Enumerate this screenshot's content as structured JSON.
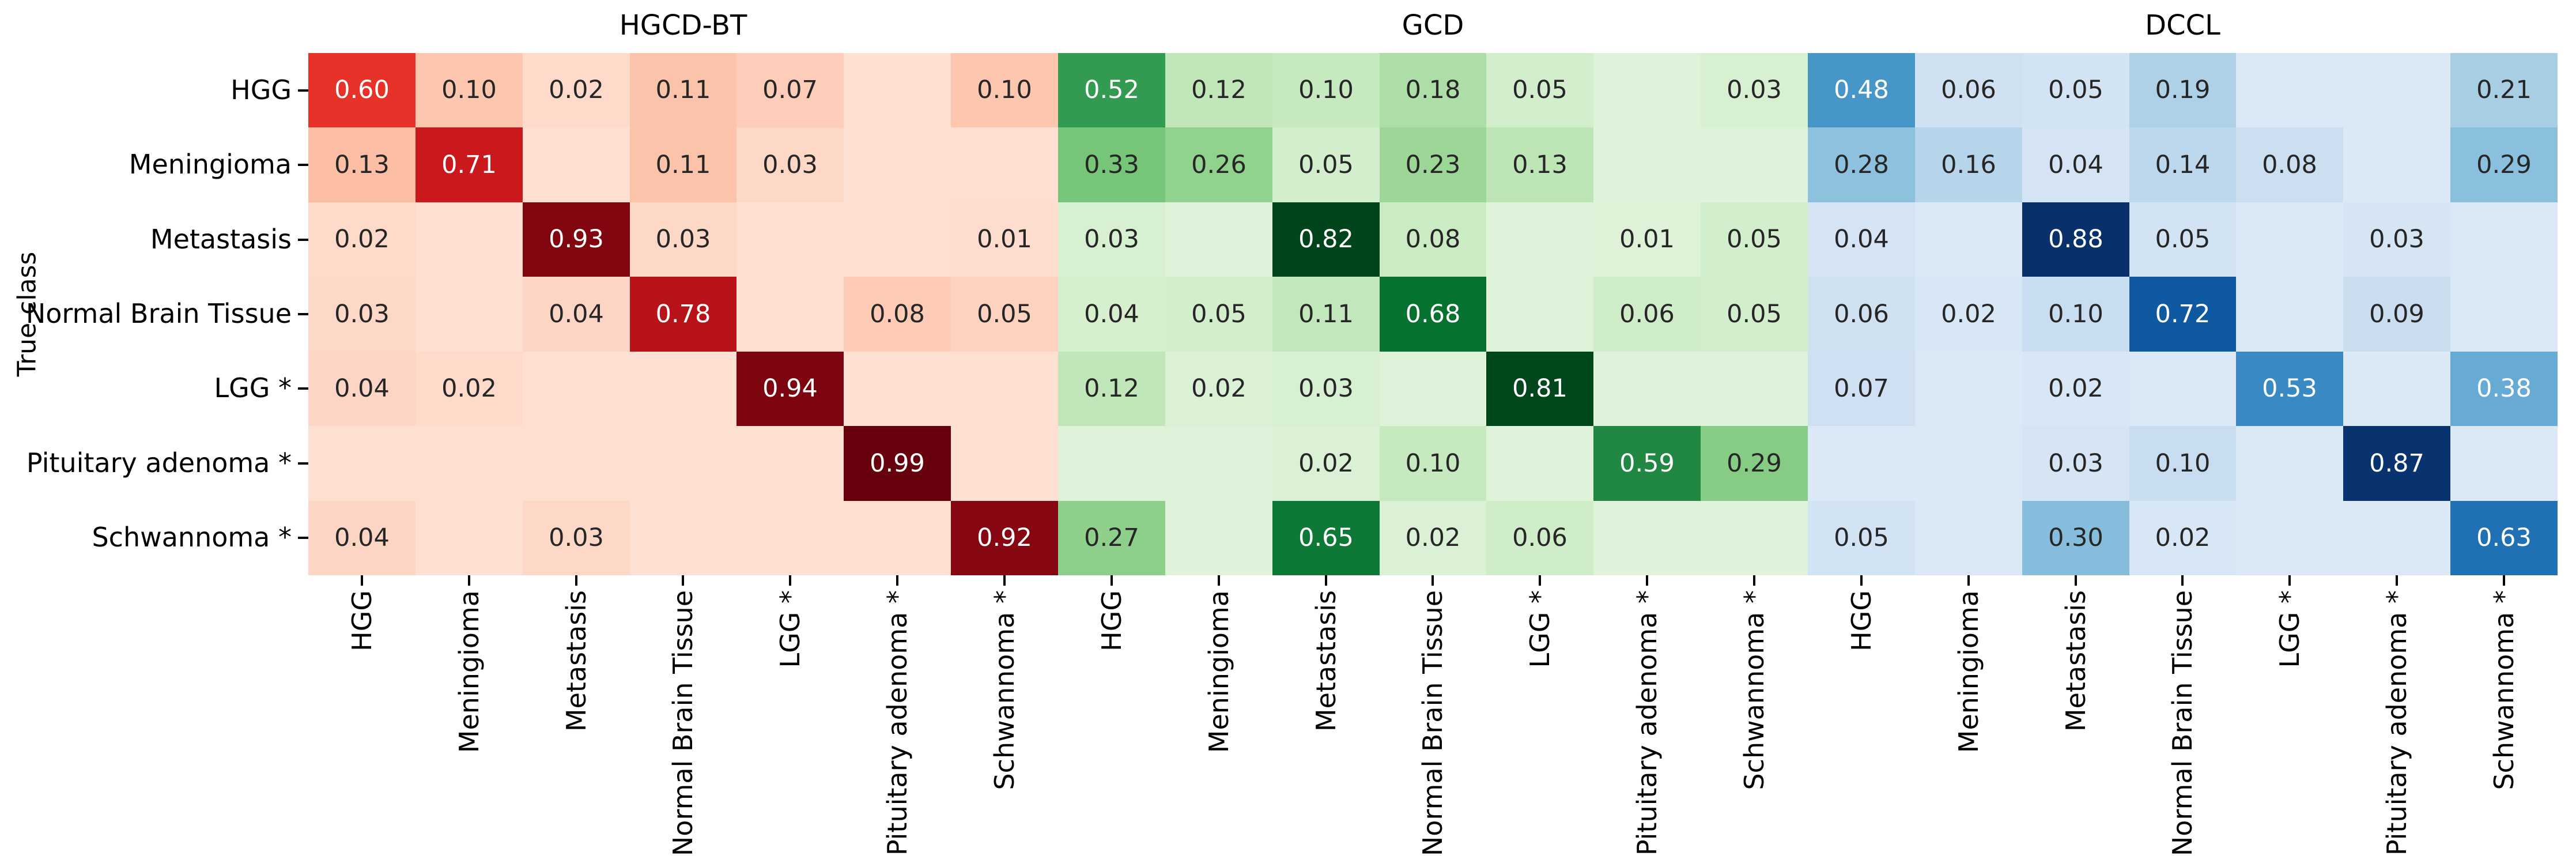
{
  "figure": {
    "ylabel": "True class",
    "background_color": "#ffffff",
    "text_color": "#000000",
    "annotation_dark_color": "#262626",
    "annotation_light_color": "#ffffff"
  },
  "chart_data": [
    {
      "type": "heatmap",
      "title": "HGCD-BT",
      "colormap": "Reds",
      "value_format": ".2f",
      "x_categories": [
        "HGG",
        "Meningioma",
        "Metastasis",
        "Normal Brain Tissue",
        "LGG *",
        "Pituitary adenoma *",
        "Schwannoma *"
      ],
      "y_categories": [
        "HGG",
        "Meningioma",
        "Metastasis",
        "Normal Brain Tissue",
        "LGG *",
        "Pituitary adenoma *",
        "Schwannoma *"
      ],
      "values": [
        [
          0.6,
          0.1,
          0.02,
          0.11,
          0.07,
          null,
          0.1
        ],
        [
          0.13,
          0.71,
          null,
          0.11,
          0.03,
          null,
          null
        ],
        [
          0.02,
          null,
          0.93,
          0.03,
          null,
          null,
          0.01
        ],
        [
          0.03,
          null,
          0.04,
          0.78,
          null,
          0.08,
          0.05
        ],
        [
          0.04,
          0.02,
          null,
          null,
          0.94,
          null,
          null
        ],
        [
          null,
          null,
          null,
          null,
          null,
          0.99,
          null
        ],
        [
          0.04,
          null,
          0.03,
          null,
          null,
          null,
          0.92
        ]
      ]
    },
    {
      "type": "heatmap",
      "title": "GCD",
      "colormap": "Greens",
      "value_format": ".2f",
      "x_categories": [
        "HGG",
        "Meningioma",
        "Metastasis",
        "Normal Brain Tissue",
        "LGG *",
        "Pituitary adenoma *",
        "Schwannoma *"
      ],
      "y_categories": [
        "HGG",
        "Meningioma",
        "Metastasis",
        "Normal Brain Tissue",
        "LGG *",
        "Pituitary adenoma *",
        "Schwannoma *"
      ],
      "values": [
        [
          0.52,
          0.12,
          0.1,
          0.18,
          0.05,
          null,
          0.03
        ],
        [
          0.33,
          0.26,
          0.05,
          0.23,
          0.13,
          null,
          null
        ],
        [
          0.03,
          null,
          0.82,
          0.08,
          null,
          0.01,
          0.05
        ],
        [
          0.04,
          0.05,
          0.11,
          0.68,
          null,
          0.06,
          0.05
        ],
        [
          0.12,
          0.02,
          0.03,
          null,
          0.81,
          null,
          null
        ],
        [
          null,
          null,
          0.02,
          0.1,
          null,
          0.59,
          0.29
        ],
        [
          0.27,
          null,
          0.65,
          0.02,
          0.06,
          null,
          null
        ]
      ]
    },
    {
      "type": "heatmap",
      "title": "DCCL",
      "colormap": "Blues",
      "value_format": ".2f",
      "x_categories": [
        "HGG",
        "Meningioma",
        "Metastasis",
        "Normal Brain Tissue",
        "LGG *",
        "Pituitary adenoma *",
        "Schwannoma *"
      ],
      "y_categories": [
        "HGG",
        "Meningioma",
        "Metastasis",
        "Normal Brain Tissue",
        "LGG *",
        "Pituitary adenoma *",
        "Schwannoma *"
      ],
      "values": [
        [
          0.48,
          0.06,
          0.05,
          0.19,
          null,
          null,
          0.21
        ],
        [
          0.28,
          0.16,
          0.04,
          0.14,
          0.08,
          null,
          0.29
        ],
        [
          0.04,
          null,
          0.88,
          0.05,
          null,
          0.03,
          null
        ],
        [
          0.06,
          0.02,
          0.1,
          0.72,
          null,
          0.09,
          null
        ],
        [
          0.07,
          null,
          0.02,
          null,
          0.53,
          null,
          0.38
        ],
        [
          null,
          null,
          0.03,
          0.1,
          null,
          0.87,
          null
        ],
        [
          0.05,
          null,
          0.3,
          0.02,
          null,
          null,
          0.63
        ]
      ]
    }
  ],
  "colormaps": {
    "Reds": [
      "#fff5f0",
      "#fee0d2",
      "#fcbba1",
      "#fc9272",
      "#fb6a4a",
      "#ef3b2c",
      "#cb181d",
      "#a50f15",
      "#67000d"
    ],
    "Greens": [
      "#f7fcf5",
      "#e5f5e0",
      "#c7e9c0",
      "#a1d99b",
      "#74c476",
      "#41ab5d",
      "#238b45",
      "#006d2c",
      "#00441b"
    ],
    "Blues": [
      "#f7fbff",
      "#deebf7",
      "#c6dbef",
      "#9ecae1",
      "#6baed6",
      "#4292c6",
      "#2171b5",
      "#08519c",
      "#08306b"
    ]
  },
  "color_scale": {
    "vmin": -0.143,
    "vmax": "per_panel_max"
  }
}
